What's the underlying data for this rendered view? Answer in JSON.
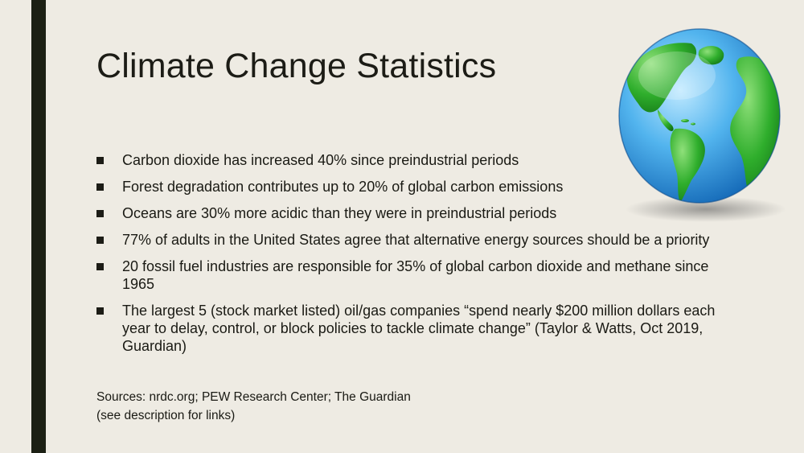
{
  "slide": {
    "title": "Climate Change Statistics",
    "bullets": [
      "Carbon dioxide has increased 40% since preindustrial periods",
      "Forest degradation contributes up to 20% of global carbon emissions",
      "Oceans are 30% more acidic than they were in preindustrial periods",
      "77% of adults in the United States agree that alternative energy sources should be a priority",
      "20 fossil fuel industries are responsible for 35% of global carbon dioxide and methane since 1965",
      "The largest 5 (stock market listed) oil/gas companies “spend nearly $200 million dollars each year to delay, control, or block policies to tackle climate change” (Taylor & Watts, Oct 2019, Guardian)"
    ],
    "sources_line1": "Sources: nrdc.org; PEW Research Center; The Guardian",
    "sources_line2": "(see description for links)"
  },
  "colors": {
    "background": "#eeebe3",
    "sidebar": "#1c2014",
    "ocean": "#3b9fe0",
    "land": "#2fa830"
  },
  "icons": {
    "globe": "globe-icon"
  }
}
